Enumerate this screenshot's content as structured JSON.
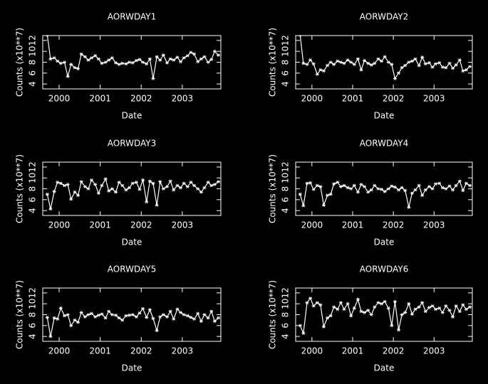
{
  "chart_data": [
    {
      "type": "line",
      "title": "AORWDAY1",
      "xlabel": "Date",
      "ylabel": "Counts (x10**7)",
      "color": "#ffffff",
      "xlim": [
        1999.6,
        2003.94
      ],
      "xticks": [
        2000,
        2001,
        2002,
        2003
      ],
      "ylim": [
        3.1,
        12.9
      ],
      "yticks": [
        4,
        6,
        8,
        10,
        12
      ],
      "x": [
        1999.71,
        1999.79,
        1999.88,
        1999.96,
        2000.04,
        2000.13,
        2000.21,
        2000.29,
        2000.38,
        2000.46,
        2000.54,
        2000.63,
        2000.71,
        2000.79,
        2000.88,
        2000.96,
        2001.04,
        2001.13,
        2001.21,
        2001.29,
        2001.38,
        2001.46,
        2001.54,
        2001.63,
        2001.71,
        2001.79,
        2001.88,
        2001.96,
        2002.04,
        2002.13,
        2002.21,
        2002.29,
        2002.38,
        2002.46,
        2002.54,
        2002.63,
        2002.71,
        2002.79,
        2002.88,
        2002.96,
        2003.04,
        2003.13,
        2003.21,
        2003.29,
        2003.38,
        2003.46,
        2003.54,
        2003.63,
        2003.71,
        2003.79,
        2003.88
      ],
      "values": [
        13,
        8.6,
        8.8,
        8.2,
        7.8,
        8.0,
        5.4,
        7.6,
        7.0,
        6.8,
        9.5,
        9.0,
        8.4,
        8.8,
        9.2,
        8.6,
        7.8,
        8.0,
        8.4,
        8.8,
        7.9,
        7.6,
        7.8,
        7.7,
        8.0,
        7.9,
        8.3,
        8.5,
        8.0,
        7.7,
        8.6,
        5.0,
        9.0,
        8.4,
        9.3,
        7.9,
        8.6,
        8.4,
        8.9,
        8.1,
        8.8,
        9.2,
        9.8,
        9.5,
        8.1,
        8.6,
        9.0,
        8.0,
        8.5,
        10.0,
        9.3
      ]
    },
    {
      "type": "line",
      "title": "AORWDAY2",
      "xlabel": "Date",
      "ylabel": "Counts (x10**7)",
      "color": "#ffffff",
      "xlim": [
        1999.6,
        2003.94
      ],
      "xticks": [
        2000,
        2001,
        2002,
        2003
      ],
      "ylim": [
        3.1,
        12.9
      ],
      "yticks": [
        4,
        6,
        8,
        10,
        12
      ],
      "x": [
        1999.71,
        1999.79,
        1999.88,
        1999.96,
        2000.04,
        2000.13,
        2000.21,
        2000.29,
        2000.38,
        2000.46,
        2000.54,
        2000.63,
        2000.71,
        2000.79,
        2000.88,
        2000.96,
        2001.04,
        2001.13,
        2001.21,
        2001.29,
        2001.38,
        2001.46,
        2001.54,
        2001.63,
        2001.71,
        2001.79,
        2001.88,
        2001.96,
        2002.04,
        2002.13,
        2002.21,
        2002.29,
        2002.38,
        2002.46,
        2002.54,
        2002.63,
        2002.71,
        2002.79,
        2002.88,
        2002.96,
        2003.04,
        2003.13,
        2003.21,
        2003.29,
        2003.38,
        2003.46,
        2003.54,
        2003.63,
        2003.71,
        2003.79,
        2003.88
      ],
      "values": [
        13,
        7.8,
        7.6,
        8.4,
        7.7,
        5.8,
        6.6,
        6.4,
        7.4,
        8.0,
        7.6,
        8.2,
        8.0,
        7.8,
        8.4,
        8.0,
        7.6,
        8.6,
        6.6,
        8.3,
        7.8,
        7.5,
        7.8,
        8.6,
        8.2,
        9.0,
        8.0,
        7.6,
        5.0,
        6.0,
        7.0,
        7.4,
        8.0,
        8.2,
        8.6,
        7.4,
        8.9,
        7.7,
        7.9,
        7.1,
        7.7,
        7.9,
        7.1,
        7.0,
        7.8,
        6.9,
        7.5,
        8.4,
        6.4,
        6.6,
        7.2
      ]
    },
    {
      "type": "line",
      "title": "AORWDAY3",
      "xlabel": "Date",
      "ylabel": "Counts (x10**7)",
      "color": "#ffffff",
      "xlim": [
        1999.6,
        2003.94
      ],
      "xticks": [
        2000,
        2001,
        2002,
        2003
      ],
      "ylim": [
        3.1,
        12.9
      ],
      "yticks": [
        4,
        6,
        8,
        10,
        12
      ],
      "x": [
        1999.71,
        1999.79,
        1999.88,
        1999.96,
        2000.04,
        2000.13,
        2000.21,
        2000.29,
        2000.38,
        2000.46,
        2000.54,
        2000.63,
        2000.71,
        2000.79,
        2000.88,
        2000.96,
        2001.04,
        2001.13,
        2001.21,
        2001.29,
        2001.38,
        2001.46,
        2001.54,
        2001.63,
        2001.71,
        2001.79,
        2001.88,
        2001.96,
        2002.04,
        2002.13,
        2002.21,
        2002.29,
        2002.38,
        2002.46,
        2002.54,
        2002.63,
        2002.71,
        2002.79,
        2002.88,
        2002.96,
        2003.04,
        2003.13,
        2003.21,
        2003.29,
        2003.38,
        2003.46,
        2003.54,
        2003.63,
        2003.71,
        2003.79,
        2003.88
      ],
      "values": [
        7.0,
        4.3,
        7.5,
        9.2,
        9.0,
        8.6,
        8.8,
        6.1,
        7.4,
        6.8,
        9.3,
        8.4,
        8.0,
        9.6,
        8.8,
        7.2,
        8.6,
        9.8,
        7.6,
        8.0,
        7.4,
        9.2,
        8.6,
        7.8,
        8.2,
        9.0,
        9.2,
        7.9,
        9.6,
        5.6,
        9.4,
        9.0,
        5.0,
        9.3,
        8.0,
        8.4,
        9.4,
        7.8,
        8.6,
        8.2,
        9.0,
        8.4,
        9.2,
        8.6,
        8.0,
        7.4,
        8.2,
        9.2,
        8.6,
        8.8,
        9.3
      ]
    },
    {
      "type": "line",
      "title": "AORWDAY4",
      "xlabel": "Date",
      "ylabel": "Counts (x10**7)",
      "color": "#ffffff",
      "xlim": [
        1999.6,
        2003.94
      ],
      "xticks": [
        2000,
        2001,
        2002,
        2003
      ],
      "ylim": [
        3.1,
        12.9
      ],
      "yticks": [
        4,
        6,
        8,
        10,
        12
      ],
      "x": [
        1999.71,
        1999.79,
        1999.88,
        1999.96,
        2000.04,
        2000.13,
        2000.21,
        2000.29,
        2000.38,
        2000.46,
        2000.54,
        2000.63,
        2000.71,
        2000.79,
        2000.88,
        2000.96,
        2001.04,
        2001.13,
        2001.21,
        2001.29,
        2001.38,
        2001.46,
        2001.54,
        2001.63,
        2001.71,
        2001.79,
        2001.88,
        2001.96,
        2002.04,
        2002.13,
        2002.21,
        2002.29,
        2002.38,
        2002.46,
        2002.54,
        2002.63,
        2002.71,
        2002.79,
        2002.88,
        2002.96,
        2003.04,
        2003.13,
        2003.21,
        2003.29,
        2003.38,
        2003.46,
        2003.54,
        2003.63,
        2003.71,
        2003.79,
        2003.88
      ],
      "values": [
        7.0,
        4.9,
        9.0,
        9.1,
        7.9,
        8.6,
        8.4,
        5.0,
        6.8,
        7.0,
        8.9,
        9.2,
        8.4,
        8.6,
        8.2,
        8.0,
        8.6,
        7.4,
        8.8,
        8.4,
        7.4,
        7.8,
        8.6,
        8.0,
        7.9,
        7.5,
        8.0,
        8.5,
        8.3,
        7.8,
        8.2,
        7.7,
        4.6,
        7.2,
        7.8,
        8.6,
        6.8,
        7.8,
        8.4,
        8.0,
        8.9,
        9.0,
        8.2,
        8.0,
        8.5,
        7.8,
        8.6,
        9.4,
        7.7,
        9.0,
        8.6
      ]
    },
    {
      "type": "line",
      "title": "AORWDAY5",
      "xlabel": "Date",
      "ylabel": "Counts (x10**7)",
      "color": "#ffffff",
      "xlim": [
        1999.6,
        2003.94
      ],
      "xticks": [
        2000,
        2001,
        2002,
        2003
      ],
      "ylim": [
        3.1,
        12.9
      ],
      "yticks": [
        4,
        6,
        8,
        10,
        12
      ],
      "x": [
        1999.71,
        1999.79,
        1999.88,
        1999.96,
        2000.04,
        2000.13,
        2000.21,
        2000.29,
        2000.38,
        2000.46,
        2000.54,
        2000.63,
        2000.71,
        2000.79,
        2000.88,
        2000.96,
        2001.04,
        2001.13,
        2001.21,
        2001.29,
        2001.38,
        2001.46,
        2001.54,
        2001.63,
        2001.71,
        2001.79,
        2001.88,
        2001.96,
        2002.04,
        2002.13,
        2002.21,
        2002.29,
        2002.38,
        2002.46,
        2002.54,
        2002.63,
        2002.71,
        2002.79,
        2002.88,
        2002.96,
        2003.04,
        2003.13,
        2003.21,
        2003.29,
        2003.38,
        2003.46,
        2003.54,
        2003.63,
        2003.71,
        2003.79,
        2003.88
      ],
      "values": [
        7.5,
        4.0,
        7.4,
        7.2,
        9.2,
        7.8,
        8.0,
        6.0,
        7.0,
        6.6,
        8.4,
        7.6,
        8.0,
        8.2,
        7.6,
        7.9,
        8.1,
        7.4,
        8.6,
        8.0,
        7.9,
        7.4,
        7.0,
        7.8,
        7.9,
        8.0,
        7.6,
        8.3,
        9.1,
        7.5,
        8.9,
        7.3,
        5.1,
        7.6,
        8.0,
        7.6,
        8.6,
        7.2,
        9.0,
        8.4,
        8.0,
        7.8,
        7.5,
        7.2,
        8.2,
        6.8,
        8.0,
        7.4,
        8.6,
        6.8,
        7.4
      ]
    },
    {
      "type": "line",
      "title": "AORWDAY6",
      "xlabel": "Date",
      "ylabel": "Counts (x10**7)",
      "color": "#ffffff",
      "xlim": [
        1999.6,
        2003.94
      ],
      "xticks": [
        2000,
        2001,
        2002,
        2003
      ],
      "ylim": [
        3.1,
        12.9
      ],
      "yticks": [
        4,
        6,
        8,
        10,
        12
      ],
      "x": [
        1999.71,
        1999.79,
        1999.88,
        1999.96,
        2000.04,
        2000.13,
        2000.21,
        2000.29,
        2000.38,
        2000.46,
        2000.54,
        2000.63,
        2000.71,
        2000.79,
        2000.88,
        2000.96,
        2001.04,
        2001.13,
        2001.21,
        2001.29,
        2001.38,
        2001.46,
        2001.54,
        2001.63,
        2001.71,
        2001.79,
        2001.88,
        2001.96,
        2002.04,
        2002.13,
        2002.21,
        2002.29,
        2002.38,
        2002.46,
        2002.54,
        2002.63,
        2002.71,
        2002.79,
        2002.88,
        2002.96,
        2003.04,
        2003.13,
        2003.21,
        2003.29,
        2003.38,
        2003.46,
        2003.54,
        2003.63,
        2003.71,
        2003.79,
        2003.88
      ],
      "values": [
        6.0,
        4.6,
        10.2,
        11.0,
        9.6,
        10.2,
        9.8,
        5.8,
        7.4,
        7.8,
        9.4,
        9.0,
        10.2,
        9.0,
        10.0,
        7.8,
        9.2,
        10.8,
        8.6,
        8.4,
        8.8,
        8.0,
        9.4,
        10.2,
        10.0,
        10.4,
        9.2,
        6.0,
        10.4,
        5.2,
        8.0,
        8.4,
        10.0,
        8.1,
        9.0,
        9.4,
        10.2,
        8.6,
        9.3,
        9.6,
        9.0,
        9.2,
        8.4,
        9.6,
        8.8,
        7.6,
        9.6,
        8.6,
        9.8,
        9.0,
        9.4
      ]
    }
  ]
}
